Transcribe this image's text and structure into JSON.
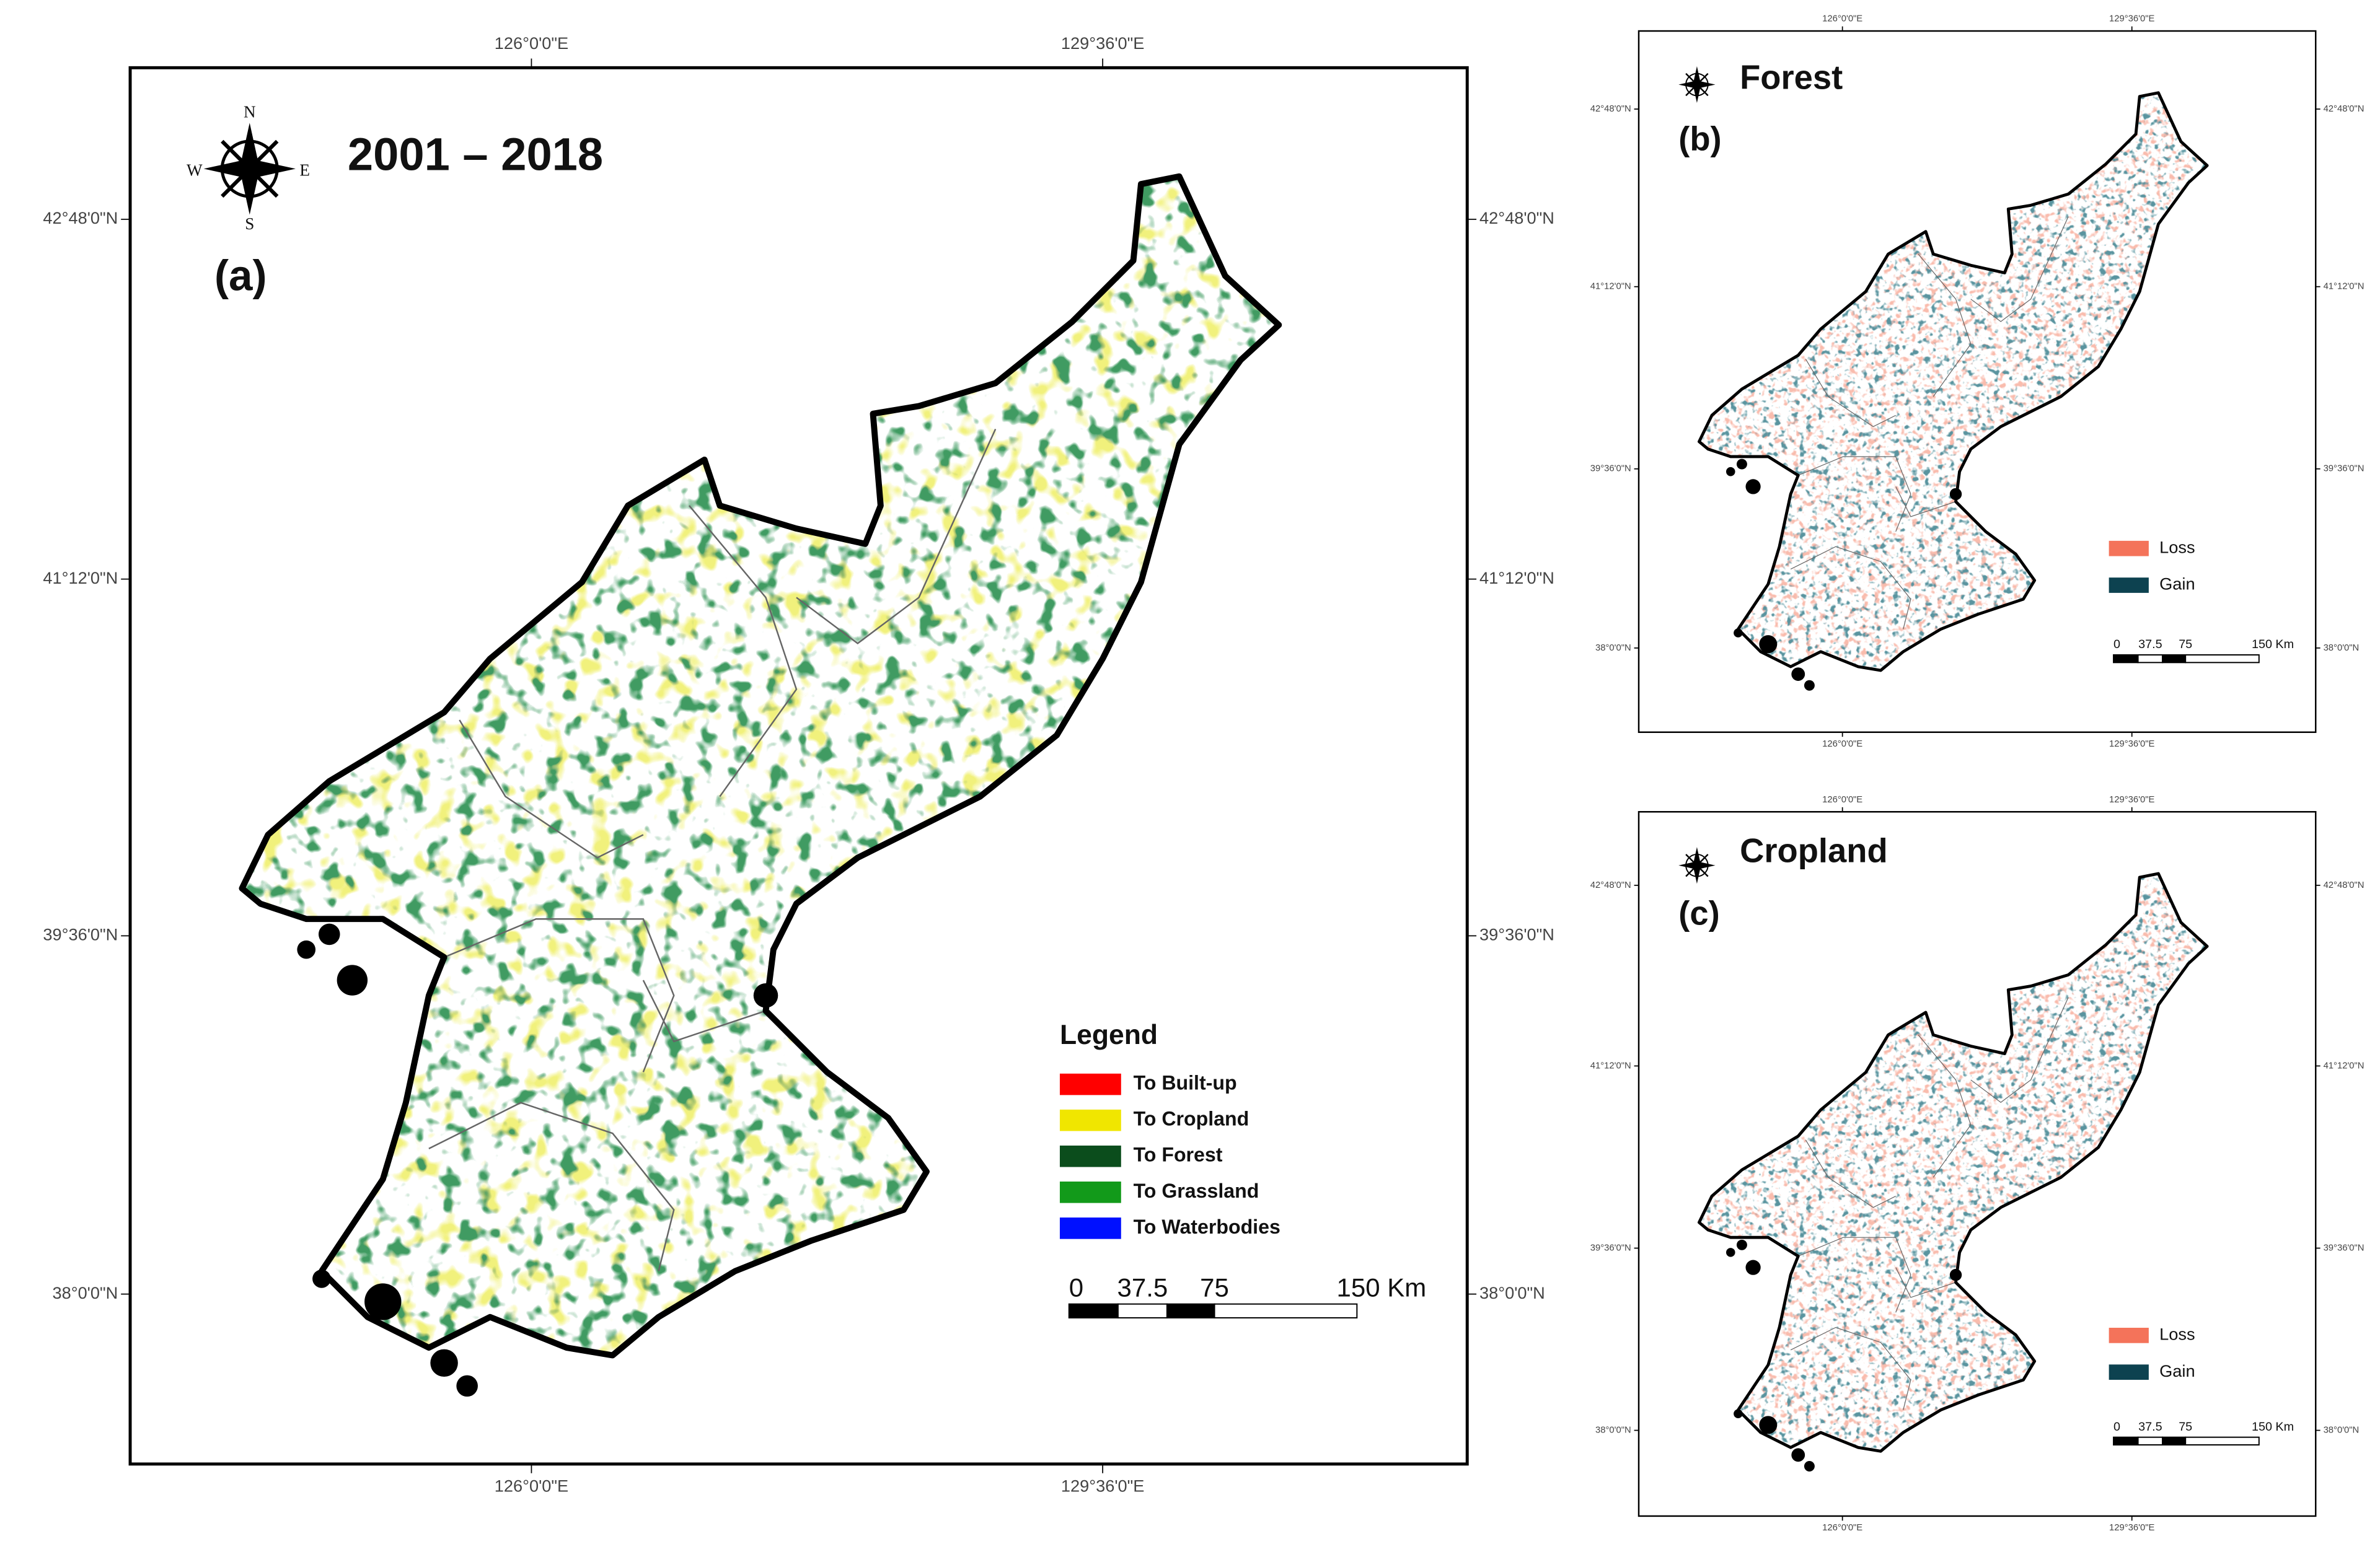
{
  "panels": [
    {
      "label": "(a)",
      "title": "2001 – 2018",
      "compass": [
        "N",
        "S",
        "E",
        "W"
      ],
      "graticule": {
        "lon": [
          "126°0'0\"E",
          "129°36'0\"E"
        ],
        "lat": [
          "42°48'0\"N",
          "41°12'0\"N",
          "39°36'0\"N",
          "38°0'0\"N"
        ]
      },
      "legend": {
        "title": "Legend",
        "items": [
          {
            "label": "To Built-up",
            "color": "#ff0000"
          },
          {
            "label": "To Cropland",
            "color": "#f0e600"
          },
          {
            "label": "To Forest",
            "color": "#0b4d1c"
          },
          {
            "label": "To Grassland",
            "color": "#129a1a"
          },
          {
            "label": "To Waterbodies",
            "color": "#0010ff"
          }
        ]
      },
      "scale_bar": [
        "0",
        "37.5",
        "75",
        "150 Km"
      ]
    },
    {
      "label": "(b)",
      "title": "Forest",
      "graticule": {
        "lon": [
          "126°0'0\"E",
          "129°36'0\"E"
        ],
        "lat": [
          "42°48'0\"N",
          "41°12'0\"N",
          "39°36'0\"N",
          "38°0'0\"N"
        ]
      },
      "legend": {
        "items": [
          {
            "label": "Loss",
            "color": "#f4735a"
          },
          {
            "label": "Gain",
            "color": "#0d4250"
          }
        ]
      },
      "scale_bar": [
        "0",
        "37.5",
        "75",
        "150 Km"
      ]
    },
    {
      "label": "(c)",
      "title": "Cropland",
      "graticule": {
        "lon": [
          "126°0'0\"E",
          "129°36'0\"E"
        ],
        "lat": [
          "42°48'0\"N",
          "41°12'0\"N",
          "39°36'0\"N",
          "38°0'0\"N"
        ]
      },
      "legend": {
        "items": [
          {
            "label": "Loss",
            "color": "#f4735a"
          },
          {
            "label": "Gain",
            "color": "#0d4250"
          }
        ]
      },
      "scale_bar": [
        "0",
        "37.5",
        "75",
        "150 Km"
      ]
    }
  ]
}
